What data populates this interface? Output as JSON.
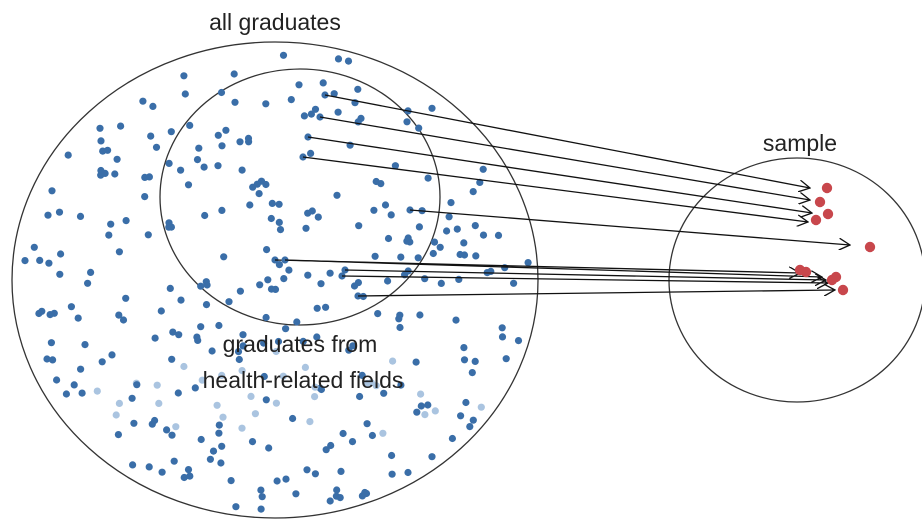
{
  "labels": {
    "population": "all graduates",
    "subgroup_line1": "graduates from",
    "subgroup_line2": "health-related fields",
    "sample": "sample"
  },
  "colors": {
    "population_dot": "#3a6ea8",
    "light_dot": "#aac4e0",
    "sample_dot": "#c8474c",
    "outline": "#333333",
    "arrow": "#111111"
  }
}
